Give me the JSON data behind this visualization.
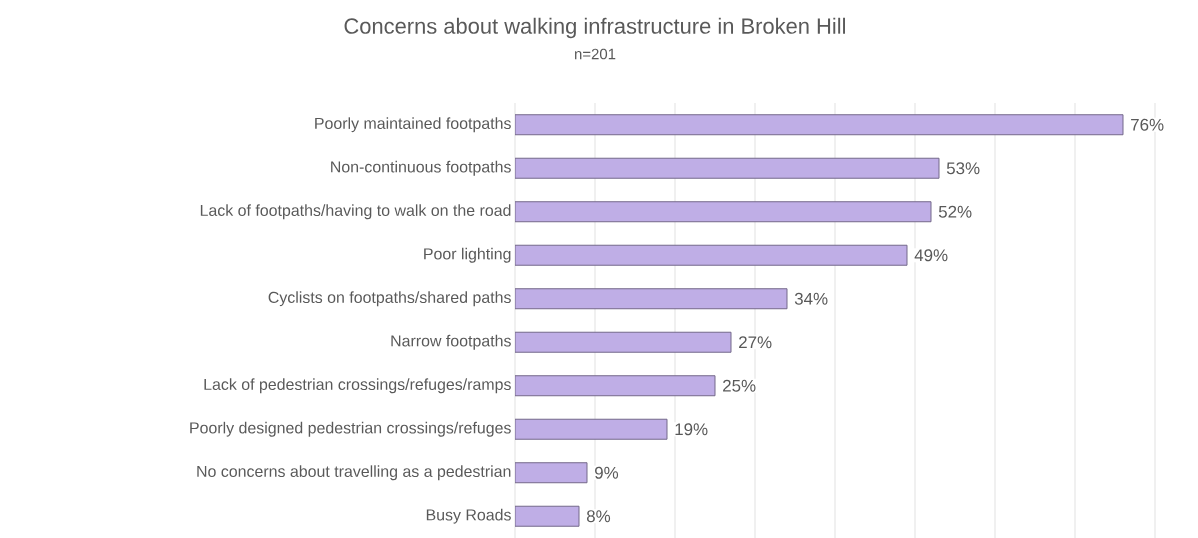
{
  "chart_data": {
    "type": "bar",
    "orientation": "horizontal",
    "title": "Concerns about walking infrastructure in Broken Hill",
    "subtitle": "n=201",
    "categories": [
      "Poorly maintained footpaths",
      "Non-continuous footpaths",
      "Lack of footpaths/having to walk on the road",
      "Poor lighting",
      "Cyclists on footpaths/shared paths",
      "Narrow footpaths",
      "Lack of pedestrian crossings/refuges/ramps",
      "Poorly designed pedestrian crossings/refuges",
      "No concerns about travelling as a pedestrian",
      "Busy Roads"
    ],
    "values": [
      76,
      53,
      52,
      49,
      34,
      27,
      25,
      19,
      9,
      8
    ],
    "value_labels": [
      "76%",
      "53%",
      "52%",
      "49%",
      "34%",
      "27%",
      "25%",
      "19%",
      "9%",
      "8%"
    ],
    "color": "#bfaee6",
    "xlim": [
      0,
      80
    ],
    "xticks": [
      {
        "value": 0,
        "label": null
      },
      {
        "value": 10,
        "label": null
      },
      {
        "value": 20,
        "label": null
      },
      {
        "value": 30,
        "label": null
      },
      {
        "value": 40,
        "label": null
      },
      {
        "value": 50,
        "label": null
      },
      {
        "value": 60,
        "label": null
      },
      {
        "value": 70,
        "label": null
      },
      {
        "value": 80,
        "label": null
      }
    ],
    "tick_labels": "y",
    "grid": "x"
  }
}
